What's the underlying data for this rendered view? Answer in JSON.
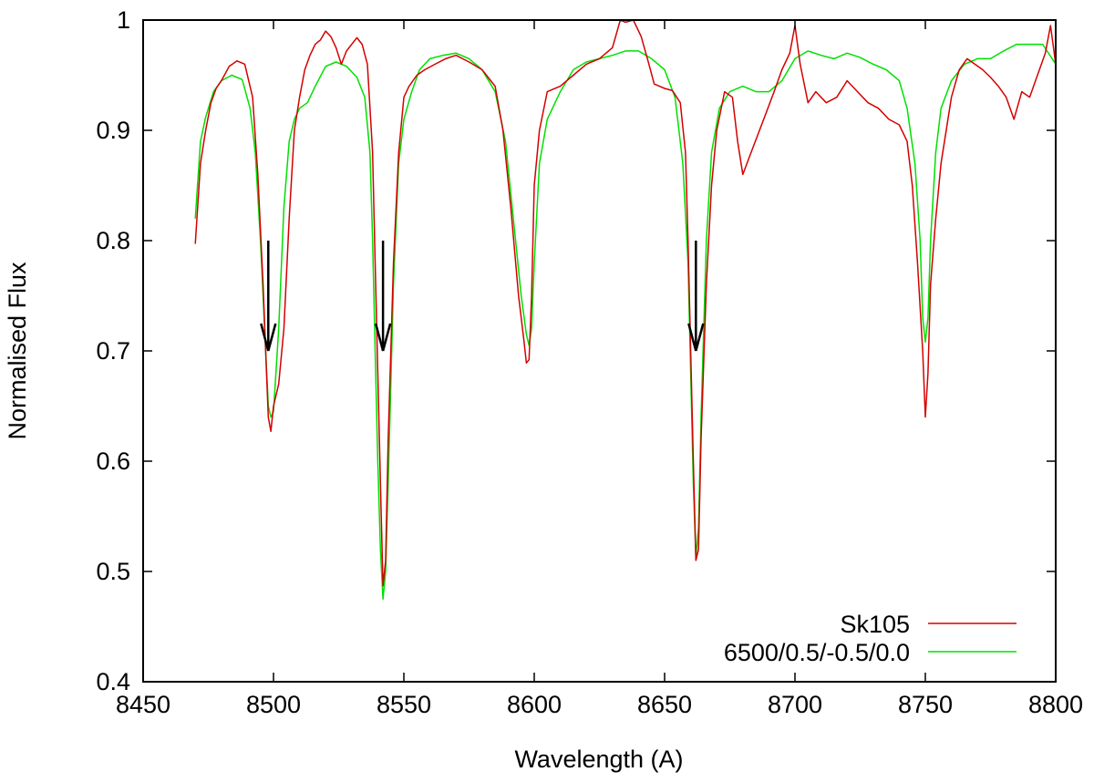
{
  "chart_data": {
    "type": "line",
    "title": "",
    "xlabel": "Wavelength (A)",
    "ylabel": "Normalised Flux",
    "xlim": [
      8450,
      8800
    ],
    "ylim": [
      0.4,
      1.0
    ],
    "xticks": [
      8450,
      8500,
      8550,
      8600,
      8650,
      8700,
      8750,
      8800
    ],
    "yticks": [
      0.4,
      0.5,
      0.6,
      0.7,
      0.8,
      0.9,
      1.0
    ],
    "xtick_labels": [
      "8450",
      "8500",
      "8550",
      "8600",
      "8650",
      "8700",
      "8750",
      "8800"
    ],
    "ytick_labels": [
      "0.4",
      "0.5",
      "0.6",
      "0.7",
      "0.8",
      "0.9",
      "1"
    ],
    "grid": false,
    "legend_position": "bottom-right",
    "series": [
      {
        "name": "Sk105",
        "color": "#d40000",
        "x": [
          8470,
          8472,
          8474,
          8476,
          8478,
          8480,
          8483,
          8486,
          8489,
          8492,
          8494,
          8496,
          8497,
          8498,
          8499,
          8500,
          8502,
          8504,
          8506,
          8508,
          8510,
          8512,
          8514,
          8516,
          8518,
          8520,
          8522,
          8524,
          8526,
          8528,
          8530,
          8532,
          8534,
          8536,
          8538,
          8539,
          8540,
          8541,
          8542,
          8543,
          8544,
          8546,
          8548,
          8550,
          8552,
          8555,
          8558,
          8562,
          8566,
          8570,
          8575,
          8580,
          8585,
          8588,
          8591,
          8594,
          8596,
          8597,
          8598,
          8599,
          8600,
          8602,
          8605,
          8610,
          8615,
          8620,
          8625,
          8630,
          8633,
          8635,
          8638,
          8641,
          8644,
          8646,
          8648,
          8650,
          8653,
          8656,
          8658,
          8659,
          8660,
          8661,
          8662,
          8663,
          8664,
          8666,
          8668,
          8670,
          8673,
          8676,
          8678,
          8680,
          8684,
          8688,
          8692,
          8695,
          8698,
          8700,
          8702,
          8705,
          8708,
          8712,
          8716,
          8720,
          8724,
          8728,
          8732,
          8736,
          8740,
          8743,
          8745,
          8747,
          8749,
          8750,
          8751,
          8752,
          8754,
          8756,
          8758,
          8760,
          8763,
          8766,
          8769,
          8772,
          8775,
          8778,
          8781,
          8784,
          8787,
          8790,
          8793,
          8796,
          8798,
          8800
        ],
        "y": [
          0.797,
          0.87,
          0.9,
          0.925,
          0.938,
          0.945,
          0.958,
          0.963,
          0.96,
          0.93,
          0.86,
          0.76,
          0.7,
          0.64,
          0.627,
          0.65,
          0.67,
          0.72,
          0.82,
          0.9,
          0.93,
          0.955,
          0.968,
          0.978,
          0.982,
          0.99,
          0.985,
          0.975,
          0.96,
          0.972,
          0.978,
          0.984,
          0.978,
          0.96,
          0.88,
          0.78,
          0.68,
          0.58,
          0.487,
          0.51,
          0.62,
          0.78,
          0.88,
          0.93,
          0.94,
          0.95,
          0.955,
          0.96,
          0.965,
          0.968,
          0.962,
          0.955,
          0.94,
          0.9,
          0.83,
          0.75,
          0.71,
          0.689,
          0.692,
          0.75,
          0.85,
          0.9,
          0.935,
          0.94,
          0.95,
          0.96,
          0.965,
          0.975,
          1.0,
          0.998,
          1.0,
          0.985,
          0.96,
          0.942,
          0.94,
          0.938,
          0.936,
          0.925,
          0.88,
          0.8,
          0.7,
          0.6,
          0.51,
          0.52,
          0.62,
          0.76,
          0.85,
          0.9,
          0.935,
          0.93,
          0.89,
          0.86,
          0.885,
          0.91,
          0.935,
          0.955,
          0.97,
          0.995,
          0.96,
          0.925,
          0.935,
          0.925,
          0.93,
          0.945,
          0.935,
          0.925,
          0.92,
          0.91,
          0.905,
          0.89,
          0.85,
          0.78,
          0.7,
          0.64,
          0.68,
          0.76,
          0.82,
          0.87,
          0.9,
          0.93,
          0.955,
          0.965,
          0.96,
          0.955,
          0.948,
          0.94,
          0.93,
          0.91,
          0.935,
          0.93,
          0.95,
          0.97,
          0.995,
          0.96
        ]
      },
      {
        "name": "6500/0.5/-0.5/0.0",
        "color": "#00e000",
        "x": [
          8470,
          8472,
          8474,
          8477,
          8480,
          8484,
          8488,
          8491,
          8493,
          8495,
          8497,
          8498,
          8499,
          8500,
          8502,
          8504,
          8506,
          8508,
          8510,
          8513,
          8516,
          8520,
          8524,
          8528,
          8532,
          8535,
          8537,
          8538,
          8539,
          8540,
          8541,
          8542,
          8543,
          8544,
          8546,
          8548,
          8550,
          8553,
          8556,
          8560,
          8565,
          8570,
          8575,
          8580,
          8585,
          8589,
          8592,
          8595,
          8597,
          8598,
          8599,
          8600,
          8602,
          8605,
          8610,
          8615,
          8620,
          8625,
          8630,
          8635,
          8640,
          8645,
          8650,
          8654,
          8657,
          8659,
          8660,
          8661,
          8662,
          8663,
          8664,
          8666,
          8668,
          8671,
          8675,
          8680,
          8685,
          8690,
          8695,
          8700,
          8705,
          8710,
          8715,
          8720,
          8725,
          8730,
          8735,
          8740,
          8743,
          8746,
          8748,
          8749,
          8750,
          8751,
          8752,
          8754,
          8756,
          8760,
          8765,
          8770,
          8775,
          8780,
          8785,
          8790,
          8795,
          8800
        ],
        "y": [
          0.82,
          0.89,
          0.912,
          0.935,
          0.945,
          0.95,
          0.946,
          0.92,
          0.88,
          0.8,
          0.7,
          0.65,
          0.64,
          0.645,
          0.72,
          0.83,
          0.89,
          0.91,
          0.92,
          0.925,
          0.94,
          0.958,
          0.962,
          0.958,
          0.948,
          0.93,
          0.88,
          0.8,
          0.7,
          0.6,
          0.52,
          0.475,
          0.5,
          0.58,
          0.76,
          0.87,
          0.91,
          0.935,
          0.955,
          0.965,
          0.968,
          0.97,
          0.965,
          0.955,
          0.935,
          0.89,
          0.82,
          0.75,
          0.715,
          0.705,
          0.72,
          0.78,
          0.87,
          0.91,
          0.935,
          0.955,
          0.962,
          0.965,
          0.968,
          0.972,
          0.972,
          0.965,
          0.955,
          0.93,
          0.87,
          0.78,
          0.68,
          0.58,
          0.513,
          0.54,
          0.64,
          0.8,
          0.88,
          0.92,
          0.935,
          0.94,
          0.935,
          0.935,
          0.945,
          0.965,
          0.972,
          0.968,
          0.965,
          0.97,
          0.966,
          0.96,
          0.955,
          0.945,
          0.92,
          0.87,
          0.8,
          0.73,
          0.708,
          0.73,
          0.8,
          0.88,
          0.92,
          0.945,
          0.96,
          0.965,
          0.965,
          0.972,
          0.978,
          0.978,
          0.978,
          0.96
        ]
      }
    ],
    "annotations": [
      {
        "type": "arrow",
        "x": 8498,
        "y_from": 0.8,
        "y_to": 0.7
      },
      {
        "type": "arrow",
        "x": 8542,
        "y_from": 0.8,
        "y_to": 0.7
      },
      {
        "type": "arrow",
        "x": 8662,
        "y_from": 0.8,
        "y_to": 0.7
      }
    ]
  }
}
